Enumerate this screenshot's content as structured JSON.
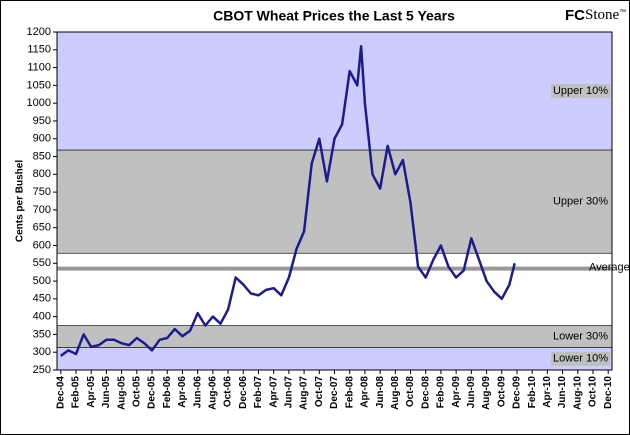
{
  "chart_data": {
    "type": "line",
    "title": "CBOT Wheat Prices the Last 5 Years",
    "logo": [
      "FC",
      "Stone",
      "™"
    ],
    "y_label": "Cents per Bushel",
    "color": "#1c1c8f",
    "ylim": [
      250,
      1200
    ],
    "yticks": [
      250,
      300,
      350,
      400,
      450,
      500,
      550,
      600,
      650,
      700,
      750,
      800,
      850,
      900,
      950,
      1000,
      1050,
      1100,
      1150,
      1200
    ],
    "xlim": [
      -0.5,
      72.5
    ],
    "xticks": [
      {
        "value": 0,
        "label": "Dec-04"
      },
      {
        "value": 2,
        "label": "Feb-05"
      },
      {
        "value": 4,
        "label": "Apr-05"
      },
      {
        "value": 6,
        "label": "Jun-05"
      },
      {
        "value": 8,
        "label": "Aug-05"
      },
      {
        "value": 10,
        "label": "Oct-05"
      },
      {
        "value": 12,
        "label": "Dec-05"
      },
      {
        "value": 14,
        "label": "Feb-06"
      },
      {
        "value": 16,
        "label": "Apr-06"
      },
      {
        "value": 18,
        "label": "Jun-06"
      },
      {
        "value": 20,
        "label": "Aug-06"
      },
      {
        "value": 22,
        "label": "Oct-06"
      },
      {
        "value": 24,
        "label": "Dec-06"
      },
      {
        "value": 26,
        "label": "Feb-07"
      },
      {
        "value": 28,
        "label": "Apr-07"
      },
      {
        "value": 30,
        "label": "Jun-07"
      },
      {
        "value": 32,
        "label": "Aug-07"
      },
      {
        "value": 34,
        "label": "Oct-07"
      },
      {
        "value": 36,
        "label": "Dec-07"
      },
      {
        "value": 38,
        "label": "Feb-08"
      },
      {
        "value": 40,
        "label": "Apr-08"
      },
      {
        "value": 42,
        "label": "Jun-08"
      },
      {
        "value": 44,
        "label": "Aug-08"
      },
      {
        "value": 46,
        "label": "Oct-08"
      },
      {
        "value": 48,
        "label": "Dec-08"
      },
      {
        "value": 50,
        "label": "Feb-09"
      },
      {
        "value": 52,
        "label": "Apr-09"
      },
      {
        "value": 54,
        "label": "Jun-09"
      },
      {
        "value": 56,
        "label": "Aug-09"
      },
      {
        "value": 58,
        "label": "Oct-09"
      },
      {
        "value": 60,
        "label": "Dec-09"
      },
      {
        "value": 62,
        "label": "Feb-10"
      },
      {
        "value": 64,
        "label": "Apr-10"
      },
      {
        "value": 66,
        "label": "Jun-10"
      },
      {
        "value": 68,
        "label": "Aug-10"
      },
      {
        "value": 70,
        "label": "Oct-10"
      },
      {
        "value": 72,
        "label": "Dec-10"
      }
    ],
    "x": [
      0,
      1,
      2,
      3,
      4,
      5,
      6,
      7,
      8,
      9,
      10,
      11,
      12,
      13,
      14,
      15,
      16,
      17,
      18,
      19,
      20,
      21,
      22,
      23,
      24,
      25,
      26,
      27,
      28,
      29,
      30,
      31,
      32,
      33,
      34,
      35,
      36,
      37,
      38,
      39,
      39.5,
      40,
      41,
      42,
      43,
      44,
      45,
      46,
      47,
      48,
      49,
      50,
      51,
      52,
      53,
      54,
      55,
      56,
      57,
      58,
      59,
      59.7
    ],
    "values": [
      290,
      305,
      295,
      350,
      315,
      320,
      335,
      335,
      325,
      320,
      340,
      325,
      305,
      335,
      340,
      365,
      345,
      360,
      410,
      375,
      400,
      380,
      420,
      510,
      490,
      465,
      460,
      475,
      480,
      460,
      510,
      590,
      640,
      830,
      900,
      780,
      900,
      940,
      1090,
      1050,
      1160,
      1000,
      800,
      760,
      880,
      800,
      840,
      720,
      540,
      510,
      560,
      600,
      540,
      510,
      530,
      620,
      560,
      500,
      470,
      450,
      490,
      550
    ],
    "bands": [
      {
        "label": "Upper 10%",
        "from": 868,
        "to": 1200,
        "color": "#ccccff"
      },
      {
        "label": "Upper 30%",
        "from": 578,
        "to": 868,
        "color": "#c0c0c0"
      },
      {
        "label": "Lower 30%",
        "from": 313,
        "to": 375,
        "color": "#c0c0c0"
      },
      {
        "label": "Lower 10%",
        "from": 250,
        "to": 313,
        "color": "#ccccff"
      }
    ],
    "average": {
      "label": "Average",
      "value": 535
    }
  }
}
